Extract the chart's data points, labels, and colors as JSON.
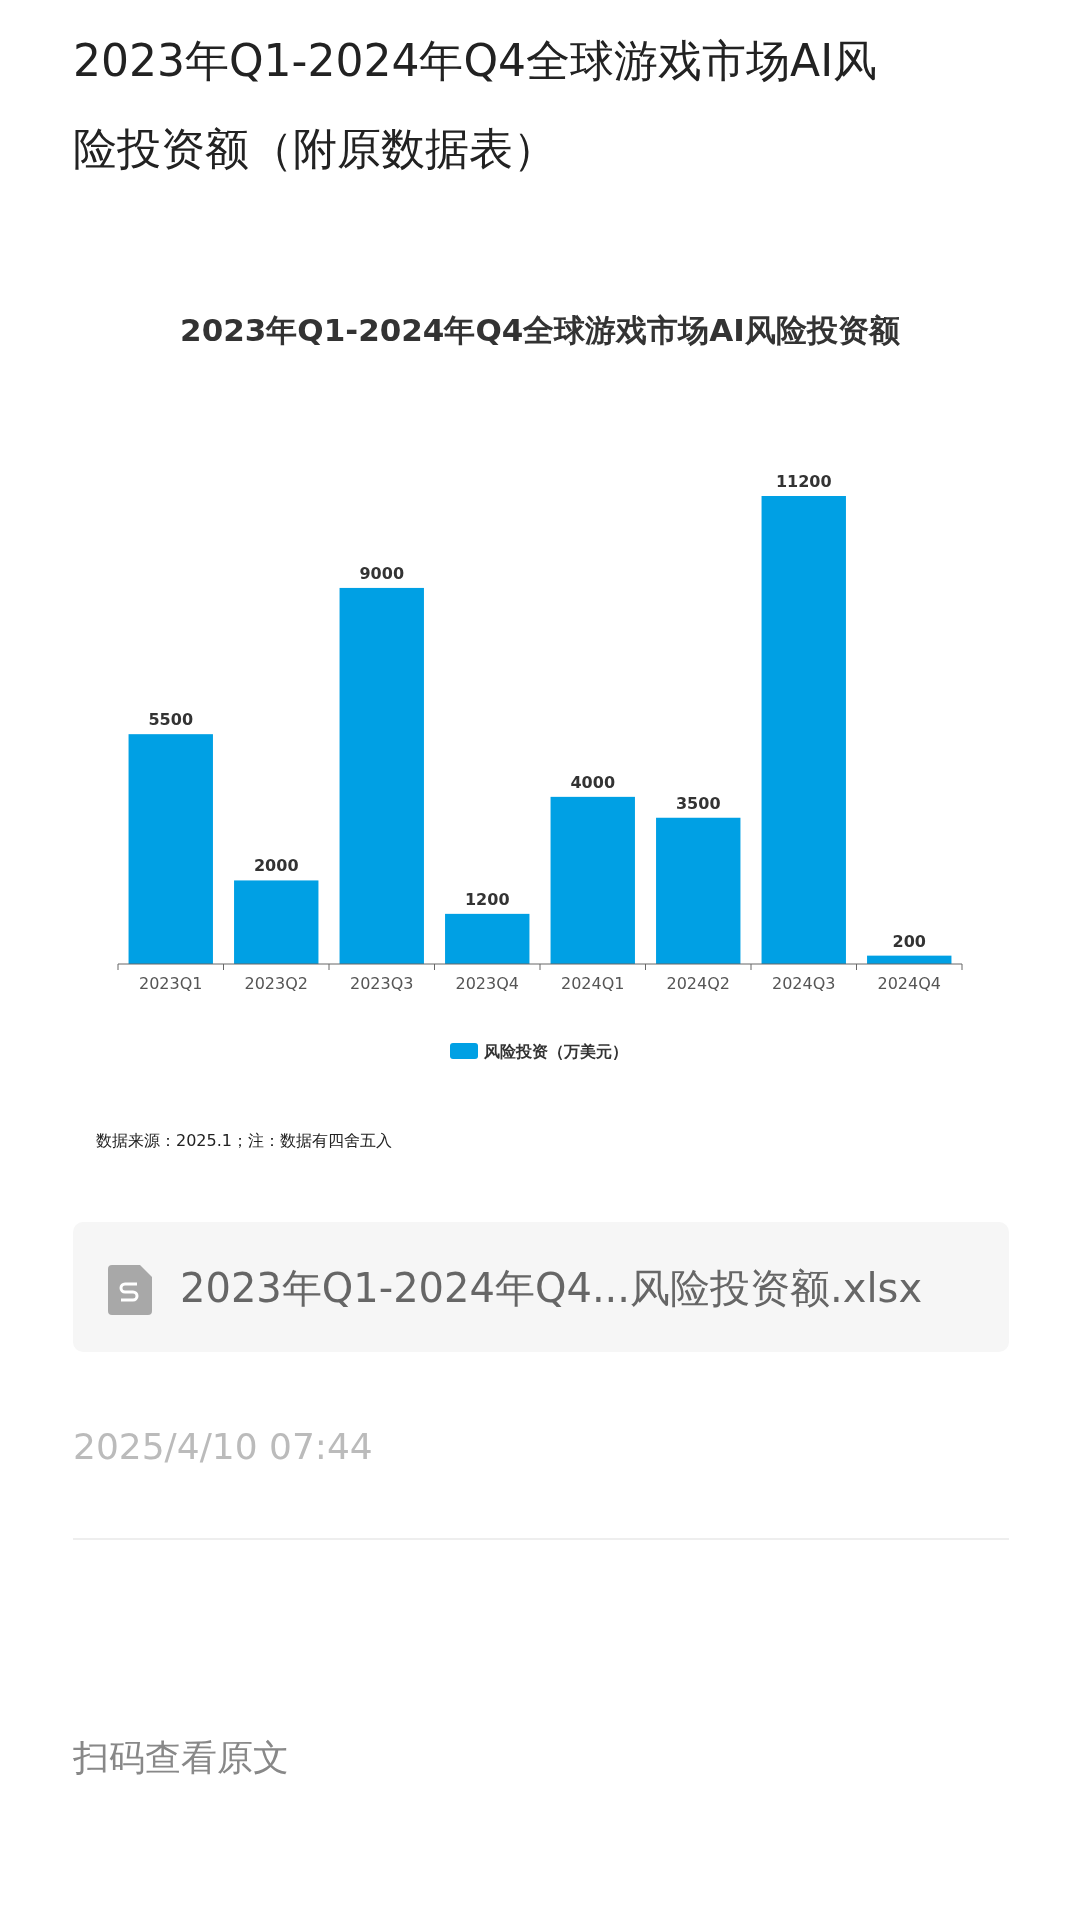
{
  "chart_data": {
    "type": "bar",
    "title": "2023年Q1-2024年Q4全球游戏市场AI风险投资额（附原数据表）",
    "subtitle": "2023年Q1-2024年Q4全球游戏市场AI风险投资额",
    "categories": [
      "2023Q1",
      "2023Q2",
      "2023Q3",
      "2023Q4",
      "2024Q1",
      "2024Q2",
      "2024Q3",
      "2024Q4"
    ],
    "series": [
      {
        "name": "风险投资（万美元）",
        "color": "#00a0e4",
        "values": [
          5500,
          2000,
          9000,
          1200,
          4000,
          3500,
          11200,
          200
        ]
      }
    ],
    "data_labels": true,
    "legend": "bottom",
    "annotations": [
      "数据来源：2025.1；注：数据有四舍五入",
      "2023年Q1-2024年Q4...风险投资额.xlsx",
      "2025/4/10 07:44",
      "扫码查看原文"
    ]
  }
}
